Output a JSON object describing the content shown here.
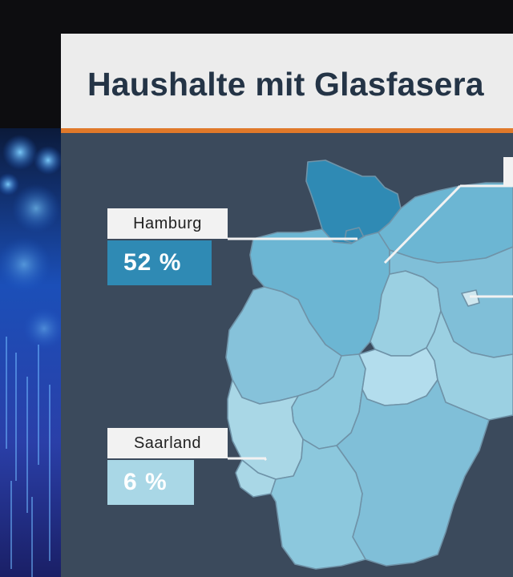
{
  "title": "Haushalte mit Glasfasera",
  "regions": [
    {
      "name": "Hamburg",
      "value": "52 %",
      "color": "#2f8ab4"
    },
    {
      "name": "Saarland",
      "value": "6 %",
      "color": "#a9d7e6"
    }
  ],
  "colors": {
    "accent": "#e0792a",
    "panel": "#3b4a5c",
    "title_bar": "#ececec",
    "state_borders": "#6f93a8"
  }
}
